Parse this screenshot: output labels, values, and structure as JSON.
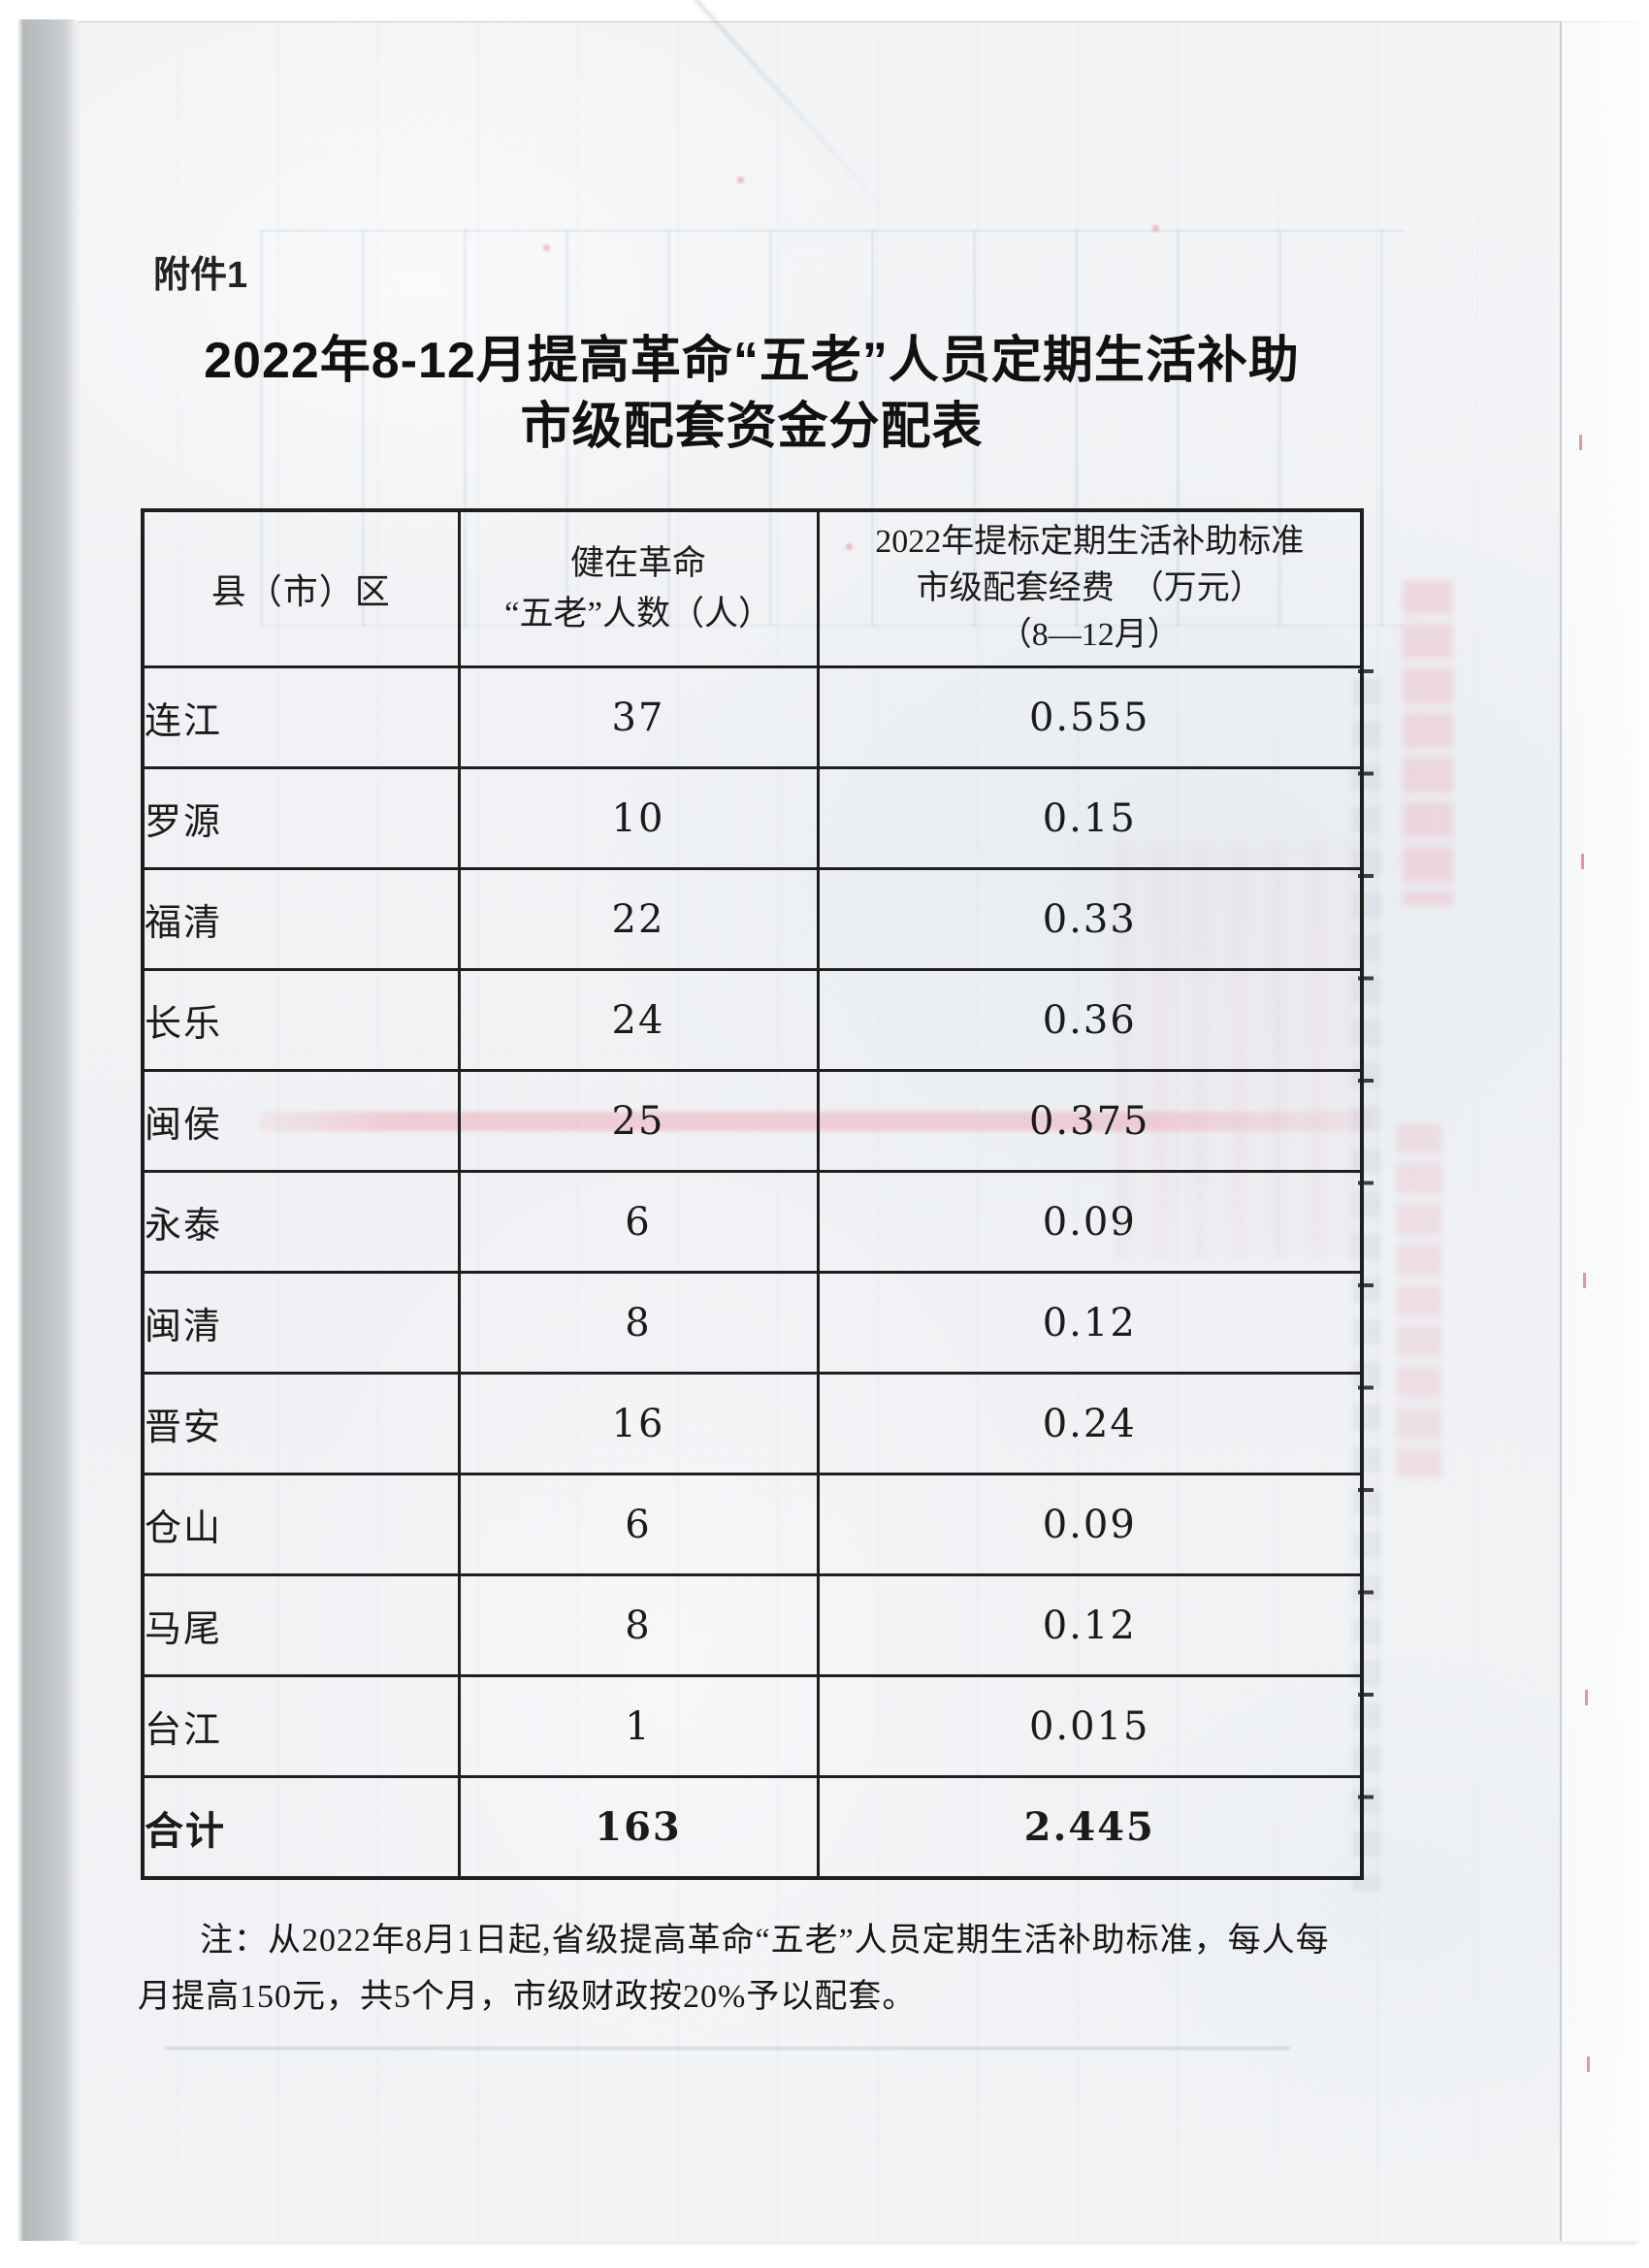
{
  "page": {
    "attachment_label": "附件1",
    "title_line1": "2022年8-12月提高革命“五老”人员定期生活补助",
    "title_line2": "市级配套资金分配表"
  },
  "table": {
    "headers": {
      "col1": "县（市）区",
      "col2_line1": "健在革命",
      "col2_line2": "“五老”人数（人）",
      "col3_line1": "2022年提标定期生活补助标准",
      "col3_line2": "市级配套经费　（万元）",
      "col3_line3": "（8—12月）"
    },
    "rows": [
      {
        "district": "连江",
        "count": "37",
        "fund": "0.555"
      },
      {
        "district": "罗源",
        "count": "10",
        "fund": "0.15"
      },
      {
        "district": "福清",
        "count": "22",
        "fund": "0.33"
      },
      {
        "district": "长乐",
        "count": "24",
        "fund": "0.36"
      },
      {
        "district": "闽侯",
        "count": "25",
        "fund": "0.375"
      },
      {
        "district": "永泰",
        "count": "6",
        "fund": "0.09"
      },
      {
        "district": "闽清",
        "count": "8",
        "fund": "0.12"
      },
      {
        "district": "晋安",
        "count": "16",
        "fund": "0.24"
      },
      {
        "district": "仓山",
        "count": "6",
        "fund": "0.09"
      },
      {
        "district": "马尾",
        "count": "8",
        "fund": "0.12"
      },
      {
        "district": "台江",
        "count": "1",
        "fund": "0.015"
      }
    ],
    "total": {
      "district": "合计",
      "count": "163",
      "fund": "2.445"
    }
  },
  "note": {
    "line1": "注：从2022年8月1日起,省级提高革命“五老”人员定期生活补助标准，每人每",
    "line2": "月提高150元，共5个月，市级财政按20%予以配套。"
  },
  "colors": {
    "table_border": "#1f1f1f",
    "paper": "#f1f3f5",
    "bleed_pink": "#ee98a8",
    "edge_strip_gray": "#b7babc"
  }
}
